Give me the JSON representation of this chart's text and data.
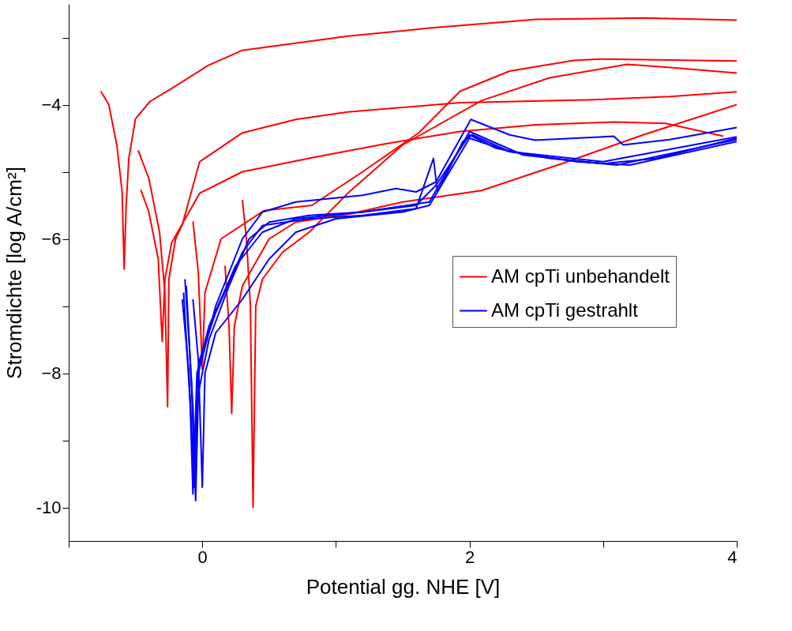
{
  "chart_data": {
    "type": "line",
    "xlabel": "Potential gg. NHE [V]",
    "ylabel": "Stromdichte [log A/cm²]",
    "xlim": [
      -1,
      4
    ],
    "xticks": [
      {
        "value": -1,
        "label": null
      },
      0,
      {
        "value": 1,
        "label": null
      },
      2,
      {
        "value": 3,
        "label": null
      },
      4
    ],
    "ylim": [
      -10.5,
      -2.5
    ],
    "yticks": [
      {
        "value": -10,
        "label": "-10"
      },
      {
        "value": -9,
        "label": null
      },
      -8,
      {
        "value": -7,
        "label": null
      },
      -6,
      {
        "value": -5,
        "label": null
      },
      -4,
      {
        "value": -3,
        "label": null
      }
    ],
    "grid": false,
    "legend": "right",
    "marker": "none",
    "line_style": "solid",
    "series": [
      {
        "name": "AM cpTi unbehandelt",
        "color": "#ff0000",
        "x": [
          -0.76,
          -0.7,
          -0.64,
          -0.6,
          -0.585,
          -0.57,
          -0.55,
          -0.5,
          -0.39,
          -0.23,
          0.04,
          0.3,
          1.09,
          1.7,
          2.5,
          3.3,
          4
        ],
        "values": [
          -3.8,
          -4.0,
          -4.6,
          -5.3,
          -6.45,
          -5.5,
          -4.8,
          -4.21,
          -3.95,
          -3.76,
          -3.42,
          -3.19,
          -2.98,
          -2.86,
          -2.73,
          -2.71,
          -2.74
        ]
      },
      {
        "color": "#ff0000",
        "x": [
          -0.48,
          -0.4,
          -0.32,
          -0.28,
          -0.26,
          -0.25,
          -0.2,
          -0.15,
          -0.02,
          0.3,
          0.7,
          1.09,
          1.93,
          2.88,
          3.5,
          4
        ],
        "values": [
          -4.68,
          -5.1,
          -5.9,
          -6.8,
          -8.5,
          -6.6,
          -6.0,
          -5.79,
          -4.85,
          -4.42,
          -4.22,
          -4.11,
          -3.97,
          -3.93,
          -3.88,
          -3.81
        ]
      },
      {
        "color": "#ff0000",
        "x": [
          -0.46,
          -0.4,
          -0.33,
          -0.3,
          -0.28,
          -0.23,
          -0.02,
          0.3,
          0.82,
          1.35,
          1.93,
          2.5,
          3.08,
          3.47,
          3.9
        ],
        "values": [
          -5.27,
          -5.6,
          -6.3,
          -7.53,
          -6.6,
          -6.06,
          -5.32,
          -5.0,
          -4.79,
          -4.59,
          -4.4,
          -4.3,
          -4.26,
          -4.28,
          -4.47
        ]
      },
      {
        "color": "#ff0000",
        "x": [
          -0.07,
          -0.03,
          0,
          0.02,
          0.14,
          0.46,
          0.82,
          1.2,
          1.62,
          1.93,
          2.3,
          2.78,
          2.98,
          4
        ],
        "values": [
          -5.74,
          -6.5,
          -7.94,
          -6.8,
          -6.0,
          -5.58,
          -5.5,
          -5.0,
          -4.42,
          -3.8,
          -3.5,
          -3.34,
          -3.32,
          -3.35
        ]
      },
      {
        "color": "#ff0000",
        "x": [
          0.17,
          0.2,
          0.22,
          0.24,
          0.3,
          0.5,
          0.7,
          1.1,
          1.5,
          2.09,
          2.69,
          3.3,
          4
        ],
        "values": [
          -6.4,
          -7.3,
          -8.6,
          -7.3,
          -6.7,
          -6.0,
          -5.75,
          -5.63,
          -5.45,
          -5.28,
          -4.88,
          -4.45,
          -4.0
        ]
      },
      {
        "color": "#ff0000",
        "x": [
          0.3,
          0.33,
          0.36,
          0.38,
          0.4,
          0.45,
          0.6,
          0.8,
          1.1,
          1.5,
          2.09,
          2.6,
          3.18,
          3.47,
          4
        ],
        "values": [
          -5.42,
          -6.0,
          -7.0,
          -10.0,
          -7.0,
          -6.6,
          -6.2,
          -5.9,
          -5.3,
          -4.6,
          -3.94,
          -3.6,
          -3.4,
          -3.44,
          -3.53
        ]
      },
      {
        "name": "AM cpTi gestrahlt",
        "color": "#0000ff",
        "x": [
          -0.13,
          -0.1,
          -0.07,
          -0.05,
          -0.03,
          0.05,
          0.2,
          0.35,
          0.5,
          0.8,
          1.2,
          1.6,
          1.75,
          2.0,
          2.2,
          2.6,
          3.0,
          3.4,
          4
        ],
        "values": [
          -6.6,
          -7.5,
          -8.5,
          -9.9,
          -8.3,
          -7.5,
          -6.7,
          -6.0,
          -5.75,
          -5.65,
          -5.6,
          -5.5,
          -5.2,
          -4.45,
          -4.65,
          -4.8,
          -4.88,
          -4.8,
          -4.5
        ]
      },
      {
        "color": "#0000ff",
        "x": [
          -0.15,
          -0.1,
          -0.06,
          -0.03,
          0.1,
          0.3,
          0.45,
          0.7,
          1.2,
          1.45,
          1.6,
          1.75,
          2.01,
          2.3,
          2.49,
          3.08,
          3.15,
          3.5,
          4
        ],
        "values": [
          -6.9,
          -8.0,
          -9.7,
          -8.0,
          -7.0,
          -6.0,
          -5.6,
          -5.45,
          -5.35,
          -5.25,
          -5.3,
          -5.15,
          -4.22,
          -4.45,
          -4.53,
          -4.47,
          -4.6,
          -4.52,
          -4.34
        ]
      },
      {
        "color": "#0000ff",
        "x": [
          -0.07,
          -0.03,
          0,
          0.02,
          0.1,
          0.3,
          0.5,
          0.7,
          1.0,
          1.5,
          1.7,
          1.85,
          2.0,
          2.3,
          2.8,
          3.2,
          4
        ],
        "values": [
          -6.9,
          -7.8,
          -9.7,
          -8.0,
          -7.4,
          -6.9,
          -6.3,
          -5.9,
          -5.7,
          -5.6,
          -5.5,
          -5.0,
          -4.5,
          -4.7,
          -4.85,
          -4.9,
          -4.55
        ]
      },
      {
        "color": "#0000ff",
        "x": [
          -0.12,
          -0.08,
          -0.06,
          -0.02,
          0.1,
          0.3,
          0.45,
          0.8,
          1.2,
          1.6,
          1.73,
          1.76,
          1.95,
          2.02,
          2.3,
          3.0,
          4
        ],
        "values": [
          -6.7,
          -8.2,
          -9.4,
          -7.8,
          -7.1,
          -6.2,
          -5.8,
          -5.7,
          -5.65,
          -5.55,
          -4.8,
          -5.3,
          -4.55,
          -4.45,
          -4.7,
          -4.85,
          -4.48
        ]
      },
      {
        "color": "#0000ff",
        "x": [
          -0.14,
          -0.09,
          -0.07,
          -0.04,
          0.05,
          0.25,
          0.45,
          0.7,
          1.2,
          1.7,
          2.0,
          2.4,
          3.1,
          4
        ],
        "values": [
          -6.8,
          -8.5,
          -9.8,
          -8.0,
          -7.3,
          -6.4,
          -5.9,
          -5.7,
          -5.6,
          -5.45,
          -4.4,
          -4.75,
          -4.9,
          -4.52
        ]
      }
    ]
  }
}
